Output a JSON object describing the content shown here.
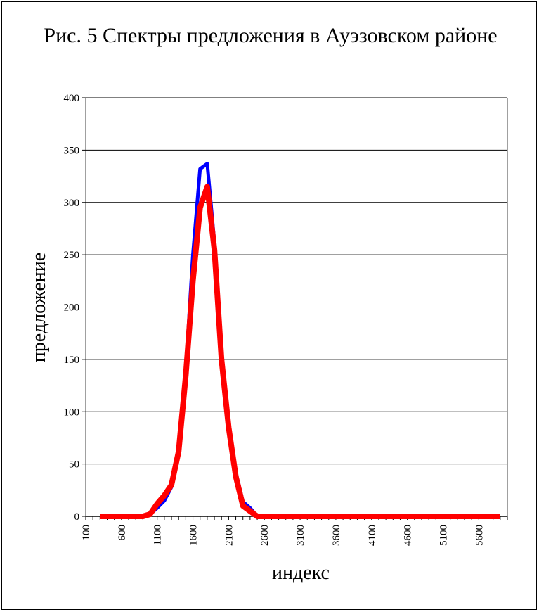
{
  "chart_data": {
    "type": "line",
    "title": "Рис. 5 Спектры предложения в Ауэзовском районе",
    "xlabel": "индекс",
    "ylabel": "предложение",
    "ylim": [
      0,
      400
    ],
    "y_ticks": [
      "0",
      "50",
      "100",
      "150",
      "200",
      "250",
      "300",
      "350",
      "400"
    ],
    "x_tick_labels": [
      "100",
      "600",
      "1100",
      "1600",
      "2100",
      "2600",
      "3100",
      "3600",
      "4100",
      "4600",
      "5100",
      "5600"
    ],
    "grid": "horizontal",
    "colors": {
      "series1": "#0000ff",
      "series2": "#ff0000",
      "grid": "#000000"
    },
    "x": [
      300,
      400,
      500,
      600,
      700,
      800,
      900,
      1000,
      1100,
      1200,
      1300,
      1400,
      1500,
      1600,
      1700,
      1800,
      1900,
      2000,
      2100,
      2200,
      2300,
      2400,
      2500,
      2600,
      2700,
      2800,
      2900,
      3000,
      3100,
      3200,
      3300,
      3400,
      3500,
      3600,
      3700,
      3800,
      3900,
      4000,
      4100,
      4200,
      4300,
      4400,
      4500,
      4600,
      4700,
      4800,
      4900,
      5000,
      5100,
      5200,
      5300,
      5400,
      5500,
      5600,
      5700,
      5800,
      5900
    ],
    "series": [
      {
        "values": [
          0,
          0,
          0,
          0,
          0,
          0,
          0,
          2,
          8,
          15,
          28,
          65,
          140,
          250,
          332,
          337,
          262,
          150,
          88,
          42,
          14,
          8,
          0,
          0,
          0,
          0,
          0,
          0,
          0,
          0,
          0,
          0,
          0,
          0,
          0,
          0,
          0,
          0,
          0,
          0,
          0,
          0,
          0,
          0,
          0,
          0,
          0,
          0,
          0,
          0,
          0,
          0,
          0,
          0,
          0,
          0,
          0
        ]
      },
      {
        "values": [
          0,
          0,
          0,
          0,
          0,
          0,
          0,
          2,
          12,
          20,
          30,
          62,
          135,
          225,
          295,
          315,
          255,
          150,
          85,
          38,
          10,
          5,
          0,
          0,
          0,
          0,
          0,
          0,
          0,
          0,
          0,
          0,
          0,
          0,
          0,
          0,
          0,
          0,
          0,
          0,
          0,
          0,
          0,
          0,
          0,
          0,
          0,
          0,
          0,
          0,
          0,
          0,
          0,
          0,
          0,
          0,
          0
        ]
      }
    ]
  }
}
